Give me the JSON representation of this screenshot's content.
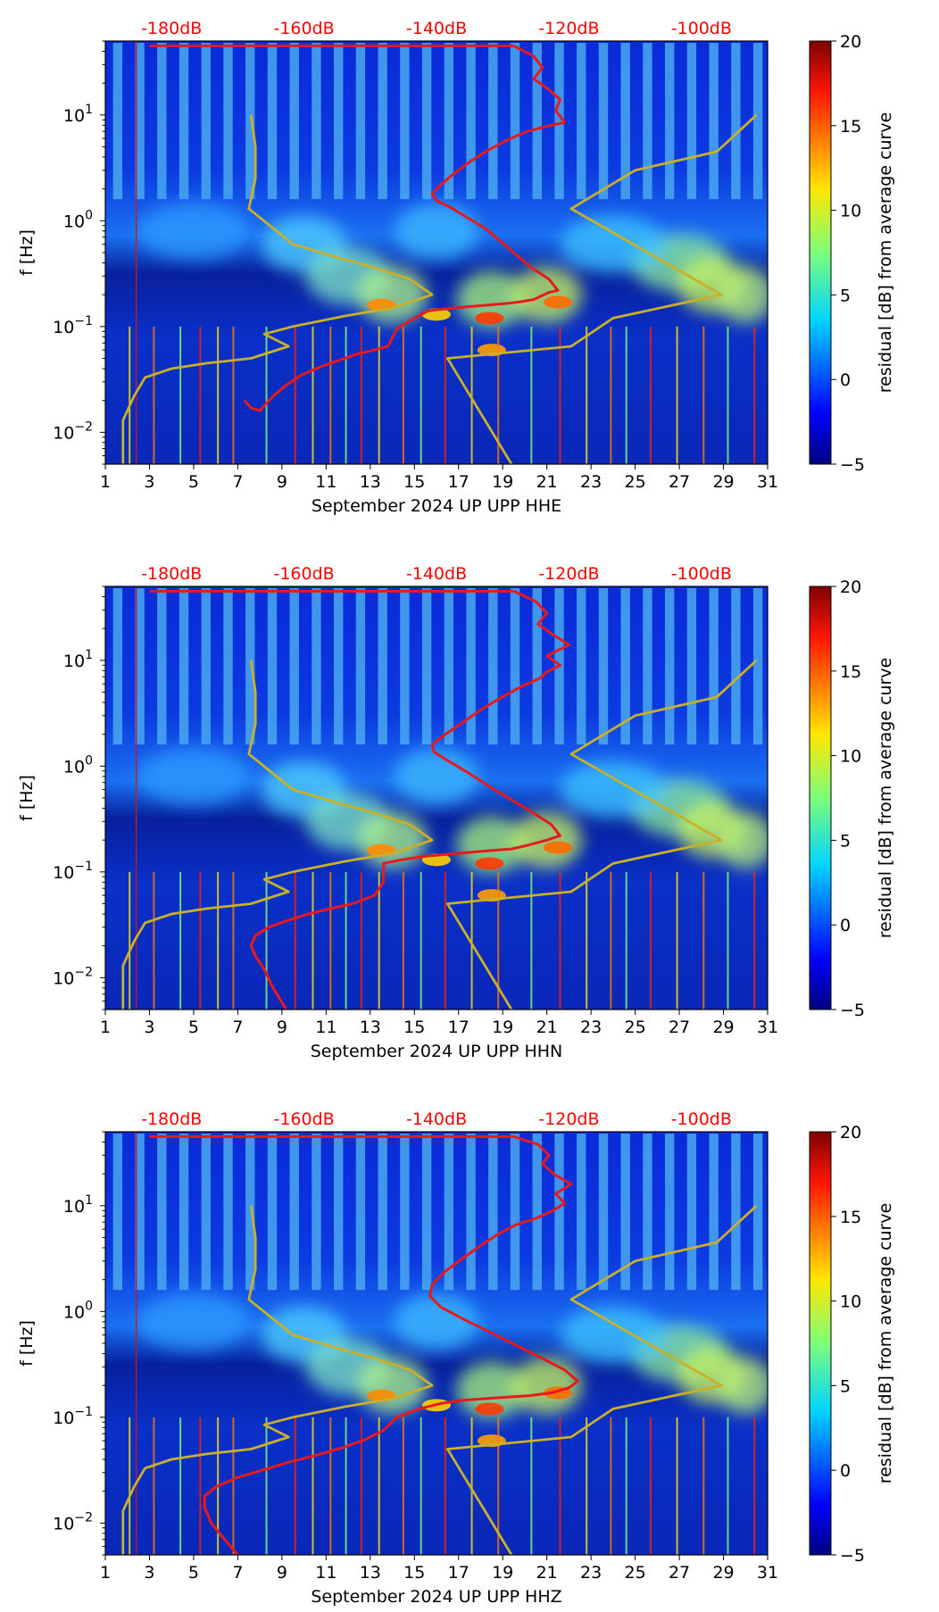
{
  "chart_data": [
    {
      "type": "heatmap",
      "title": "",
      "xlabel": "September 2024 UP UPP  HHE",
      "ylabel": "f [Hz]",
      "colorbar_label": "residual [dB] from average curve",
      "colorbar_range": [
        -5,
        20
      ],
      "colorbar_ticks": [
        "20",
        "15",
        "10",
        "5",
        "0",
        "−5"
      ],
      "xlim": [
        1,
        31
      ],
      "x_ticks": [
        "1",
        "3",
        "5",
        "7",
        "9",
        "11",
        "13",
        "15",
        "17",
        "19",
        "21",
        "23",
        "25",
        "27",
        "29",
        "31"
      ],
      "ylim": [
        0.005,
        50
      ],
      "y_scale": "log",
      "y_ticks": [
        {
          "label": "10¹",
          "exp": "1",
          "value": 10
        },
        {
          "label": "10⁰",
          "exp": "0",
          "value": 1
        },
        {
          "label": "10⁻¹",
          "exp": "−1",
          "value": 0.1
        },
        {
          "label": "10⁻²",
          "exp": "−2",
          "value": 0.01
        }
      ],
      "top_axis_labels": [
        "-180dB",
        "-160dB",
        "-140dB",
        "-120dB",
        "-100dB"
      ],
      "colors": {
        "red_curve": "#e8191b",
        "yellow_curve": "#c8b02a"
      },
      "series": [
        {
          "x": [
            7.3,
            7.6,
            8.0,
            8.6,
            9.2,
            9.9,
            10.8,
            11.6,
            12.4,
            13.2,
            13.8,
            14.2,
            15.0,
            15.6,
            16.1,
            16.8,
            17.6,
            18.4,
            19.1,
            19.7,
            20.4,
            21.1,
            21.5,
            21.1,
            20.3,
            19.6,
            18.9,
            18.2,
            17.3,
            16.6,
            16.0,
            15.8,
            16.2,
            16.8,
            17.5,
            18.3,
            19.2,
            20.1,
            21.0,
            21.8,
            21.4,
            21.6,
            21.0,
            20.4,
            20.8,
            20.4,
            19.5
          ],
          "y": [
            0.02,
            0.017,
            0.016,
            0.022,
            0.028,
            0.035,
            0.042,
            0.048,
            0.055,
            0.06,
            0.065,
            0.095,
            0.12,
            0.14,
            0.145,
            0.15,
            0.155,
            0.16,
            0.165,
            0.17,
            0.18,
            0.21,
            0.22,
            0.28,
            0.36,
            0.48,
            0.64,
            0.85,
            1.1,
            1.35,
            1.55,
            1.8,
            2.2,
            2.8,
            3.6,
            4.6,
            5.8,
            7.0,
            7.8,
            8.5,
            11,
            14,
            18,
            22,
            28,
            36,
            45
          ]
        },
        {
          "x": [
            1.8,
            1.8,
            2.3,
            2.8,
            4.0,
            5.6,
            7.6,
            9.3,
            8.2,
            9.5,
            11.8,
            14.0,
            15.8,
            14.8,
            13.2,
            11.5,
            9.5,
            7.5,
            7.8,
            7.8,
            7.6
          ],
          "y": [
            0.005,
            0.013,
            0.022,
            0.033,
            0.04,
            0.045,
            0.05,
            0.065,
            0.085,
            0.1,
            0.125,
            0.15,
            0.2,
            0.28,
            0.36,
            0.45,
            0.6,
            1.3,
            2.5,
            5.0,
            10
          ]
        },
        {
          "x": [
            19.4,
            16.5,
            22.1,
            24.0,
            28.9,
            22.1,
            25.0,
            28.7,
            30.5
          ],
          "y": [
            0.005,
            0.05,
            0.065,
            0.12,
            0.2,
            1.3,
            3.0,
            4.5,
            10
          ]
        }
      ]
    },
    {
      "type": "heatmap",
      "title": "",
      "xlabel": "September 2024 UP UPP  HHN",
      "ylabel": "f [Hz]",
      "colorbar_label": "residual [dB] from average curve",
      "colorbar_range": [
        -5,
        20
      ],
      "colorbar_ticks": [
        "20",
        "15",
        "10",
        "5",
        "0",
        "−5"
      ],
      "xlim": [
        1,
        31
      ],
      "x_ticks": [
        "1",
        "3",
        "5",
        "7",
        "9",
        "11",
        "13",
        "15",
        "17",
        "19",
        "21",
        "23",
        "25",
        "27",
        "29",
        "31"
      ],
      "ylim": [
        0.005,
        50
      ],
      "y_scale": "log",
      "y_ticks": [
        {
          "label": "10¹",
          "exp": "1",
          "value": 10
        },
        {
          "label": "10⁰",
          "exp": "0",
          "value": 1
        },
        {
          "label": "10⁻¹",
          "exp": "−1",
          "value": 0.1
        },
        {
          "label": "10⁻²",
          "exp": "−2",
          "value": 0.01
        }
      ],
      "top_axis_labels": [
        "-180dB",
        "-160dB",
        "-140dB",
        "-120dB",
        "-100dB"
      ],
      "colors": {
        "red_curve": "#e8191b",
        "yellow_curve": "#c8b02a"
      },
      "series": [
        {
          "x": [
            9.2,
            8.6,
            8.2,
            7.8,
            7.6,
            7.8,
            8.4,
            9.3,
            10.2,
            11.2,
            12.2,
            13.2,
            13.6,
            13.6,
            14.4,
            15.4,
            16.2,
            17.0,
            17.8,
            18.6,
            19.4,
            20.2,
            21.0,
            21.6,
            21.2,
            20.4,
            19.4,
            18.4,
            17.5,
            16.6,
            15.9,
            15.8,
            16.4,
            17.2,
            18.0,
            18.9,
            19.8,
            20.7,
            21.0,
            21.6,
            21.0,
            22.0,
            21.2,
            20.6,
            21.0,
            20.5,
            19.5
          ],
          "y": [
            0.005,
            0.008,
            0.012,
            0.016,
            0.02,
            0.025,
            0.03,
            0.035,
            0.04,
            0.045,
            0.05,
            0.06,
            0.08,
            0.12,
            0.13,
            0.14,
            0.145,
            0.15,
            0.155,
            0.16,
            0.165,
            0.18,
            0.2,
            0.22,
            0.28,
            0.36,
            0.48,
            0.64,
            0.85,
            1.1,
            1.35,
            1.6,
            2.0,
            2.6,
            3.4,
            4.4,
            5.6,
            6.8,
            7.8,
            9.0,
            11,
            14,
            18,
            22,
            28,
            36,
            45
          ]
        },
        {
          "x": [
            1.8,
            1.8,
            2.3,
            2.8,
            4.0,
            5.6,
            7.6,
            9.3,
            8.2,
            9.5,
            11.8,
            14.0,
            15.8,
            14.8,
            13.2,
            11.5,
            9.5,
            7.5,
            7.8,
            7.8,
            7.6
          ],
          "y": [
            0.005,
            0.013,
            0.022,
            0.033,
            0.04,
            0.045,
            0.05,
            0.065,
            0.085,
            0.1,
            0.125,
            0.15,
            0.2,
            0.28,
            0.36,
            0.45,
            0.6,
            1.3,
            2.5,
            5.0,
            10
          ]
        },
        {
          "x": [
            19.4,
            16.5,
            22.1,
            24.0,
            28.9,
            22.1,
            25.0,
            28.7,
            30.5
          ],
          "y": [
            0.005,
            0.05,
            0.065,
            0.12,
            0.2,
            1.3,
            3.0,
            4.5,
            10
          ]
        }
      ]
    },
    {
      "type": "heatmap",
      "title": "",
      "xlabel": "September 2024 UP UPP  HHZ",
      "ylabel": "f [Hz]",
      "colorbar_label": "residual [dB] from average curve",
      "colorbar_range": [
        -5,
        20
      ],
      "colorbar_ticks": [
        "20",
        "15",
        "10",
        "5",
        "0",
        "−5"
      ],
      "xlim": [
        1,
        31
      ],
      "x_ticks": [
        "1",
        "3",
        "5",
        "7",
        "9",
        "11",
        "13",
        "15",
        "17",
        "19",
        "21",
        "23",
        "25",
        "27",
        "29",
        "31"
      ],
      "ylim": [
        0.005,
        50
      ],
      "y_scale": "log",
      "y_ticks": [
        {
          "label": "10¹",
          "exp": "1",
          "value": 10
        },
        {
          "label": "10⁰",
          "exp": "0",
          "value": 1
        },
        {
          "label": "10⁻¹",
          "exp": "−1",
          "value": 0.1
        },
        {
          "label": "10⁻²",
          "exp": "−2",
          "value": 0.01
        }
      ],
      "top_axis_labels": [
        "-180dB",
        "-160dB",
        "-140dB",
        "-120dB",
        "-100dB"
      ],
      "colors": {
        "red_curve": "#e8191b",
        "yellow_curve": "#c8b02a"
      },
      "series": [
        {
          "x": [
            7.0,
            6.4,
            5.8,
            5.5,
            5.5,
            6.0,
            7.0,
            8.2,
            9.4,
            10.6,
            11.8,
            12.8,
            13.6,
            14.2,
            15.2,
            16.2,
            17.2,
            18.2,
            19.2,
            20.2,
            21.2,
            22.0,
            22.4,
            21.8,
            20.8,
            19.6,
            18.4,
            17.2,
            16.2,
            15.7,
            15.8,
            16.4,
            17.2,
            18.0,
            18.8,
            19.6,
            20.5,
            21.2,
            21.8,
            21.4,
            22.1,
            21.3,
            20.8,
            21.1,
            20.6,
            19.5
          ],
          "y": [
            0.005,
            0.007,
            0.01,
            0.014,
            0.018,
            0.022,
            0.027,
            0.032,
            0.038,
            0.044,
            0.052,
            0.062,
            0.075,
            0.1,
            0.12,
            0.135,
            0.145,
            0.15,
            0.155,
            0.16,
            0.17,
            0.19,
            0.22,
            0.28,
            0.36,
            0.48,
            0.64,
            0.85,
            1.1,
            1.4,
            1.8,
            2.4,
            3.2,
            4.2,
            5.4,
            6.6,
            7.6,
            8.8,
            10.5,
            13,
            16,
            20,
            25,
            30,
            38,
            45
          ]
        },
        {
          "x": [
            1.8,
            1.8,
            2.3,
            2.8,
            4.0,
            5.6,
            7.6,
            9.3,
            8.2,
            9.5,
            11.8,
            14.0,
            15.8,
            14.8,
            13.2,
            11.5,
            9.5,
            7.5,
            7.8,
            7.8,
            7.6
          ],
          "y": [
            0.005,
            0.013,
            0.022,
            0.033,
            0.04,
            0.045,
            0.05,
            0.065,
            0.085,
            0.1,
            0.125,
            0.15,
            0.2,
            0.28,
            0.36,
            0.45,
            0.6,
            1.3,
            2.5,
            5.0,
            10
          ]
        },
        {
          "x": [
            19.4,
            16.5,
            22.1,
            24.0,
            28.9,
            22.1,
            25.0,
            28.7,
            30.5
          ],
          "y": [
            0.005,
            0.05,
            0.065,
            0.12,
            0.2,
            1.3,
            3.0,
            4.5,
            10
          ]
        }
      ]
    }
  ]
}
